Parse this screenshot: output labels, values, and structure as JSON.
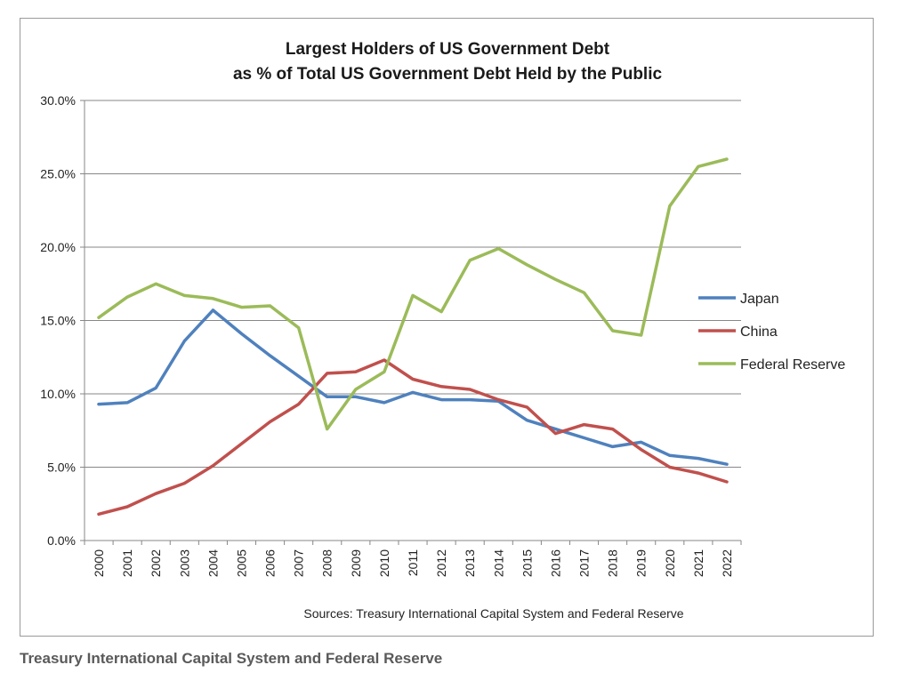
{
  "caption": "Treasury International Capital System and Federal Reserve",
  "chart_data": {
    "type": "line",
    "title": "Largest Holders of US Government Debt",
    "subtitle": "as % of Total US Government Debt Held by the Public",
    "source": "Sources: Treasury International Capital System and Federal Reserve",
    "ylim": [
      0,
      30
    ],
    "yticks": [
      "0.0%",
      "5.0%",
      "10.0%",
      "15.0%",
      "20.0%",
      "25.0%",
      "30.0%"
    ],
    "ytick_values": [
      0,
      5,
      10,
      15,
      20,
      25,
      30
    ],
    "categories": [
      "2000",
      "2001",
      "2002",
      "2003",
      "2004",
      "2005",
      "2006",
      "2007",
      "2008",
      "2009",
      "2010",
      "2011",
      "2012",
      "2013",
      "2014",
      "2015",
      "2016",
      "2017",
      "2018",
      "2019",
      "2020",
      "2021",
      "2022"
    ],
    "grid": true,
    "legend_position": "right",
    "series": [
      {
        "name": "Japan",
        "color": "#4f81bd",
        "values": [
          9.3,
          9.4,
          10.4,
          13.6,
          15.7,
          14.1,
          12.6,
          11.2,
          9.8,
          9.8,
          9.4,
          10.1,
          9.6,
          9.6,
          9.5,
          8.2,
          7.6,
          7.0,
          6.4,
          6.7,
          5.8,
          5.6,
          5.2
        ]
      },
      {
        "name": "China",
        "color": "#c0504d",
        "values": [
          1.8,
          2.3,
          3.2,
          3.9,
          5.1,
          6.6,
          8.1,
          9.3,
          11.4,
          11.5,
          12.3,
          11.0,
          10.5,
          10.3,
          9.6,
          9.1,
          7.3,
          7.9,
          7.6,
          6.2,
          5.0,
          4.6,
          4.0
        ]
      },
      {
        "name": "Federal Reserve",
        "color": "#9bbb59",
        "values": [
          15.2,
          16.6,
          17.5,
          16.7,
          16.5,
          15.9,
          16.0,
          14.5,
          7.6,
          10.3,
          11.5,
          16.7,
          15.6,
          19.1,
          19.9,
          18.8,
          17.8,
          16.9,
          14.3,
          14.0,
          22.8,
          25.5,
          26.0
        ]
      }
    ]
  }
}
